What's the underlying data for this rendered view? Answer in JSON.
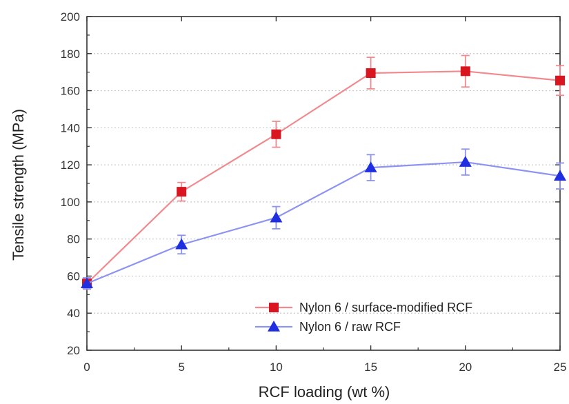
{
  "chart_data": {
    "type": "line",
    "title": "",
    "xlabel": "RCF loading (wt %)",
    "ylabel": "Tensile strength (MPa)",
    "x": [
      0,
      5,
      10,
      15,
      20,
      25
    ],
    "xlim": [
      0,
      25
    ],
    "ylim": [
      20,
      200
    ],
    "xticks": [
      "0",
      "5",
      "10",
      "15",
      "20",
      "25"
    ],
    "yticks": [
      "20",
      "40",
      "60",
      "80",
      "100",
      "120",
      "140",
      "160",
      "180",
      "200"
    ],
    "grid": "horizontal dotted",
    "legend_position": "bottom-right",
    "series": [
      {
        "name": "Nylon 6 / surface-modified RCF",
        "marker": "square",
        "color": "#d9151f",
        "line_color": "#f08a8f",
        "values": [
          56,
          105.5,
          136.5,
          169.5,
          170.5,
          165.5
        ],
        "errors": [
          3,
          5,
          7,
          8.5,
          8.5,
          8
        ]
      },
      {
        "name": "Nylon 6 / raw RCF",
        "marker": "triangle",
        "color": "#1f2fe0",
        "line_color": "#8c93f2",
        "values": [
          56,
          77,
          91.5,
          118.5,
          121.5,
          114
        ],
        "errors": [
          3,
          5,
          6,
          7,
          7,
          7
        ]
      }
    ]
  }
}
